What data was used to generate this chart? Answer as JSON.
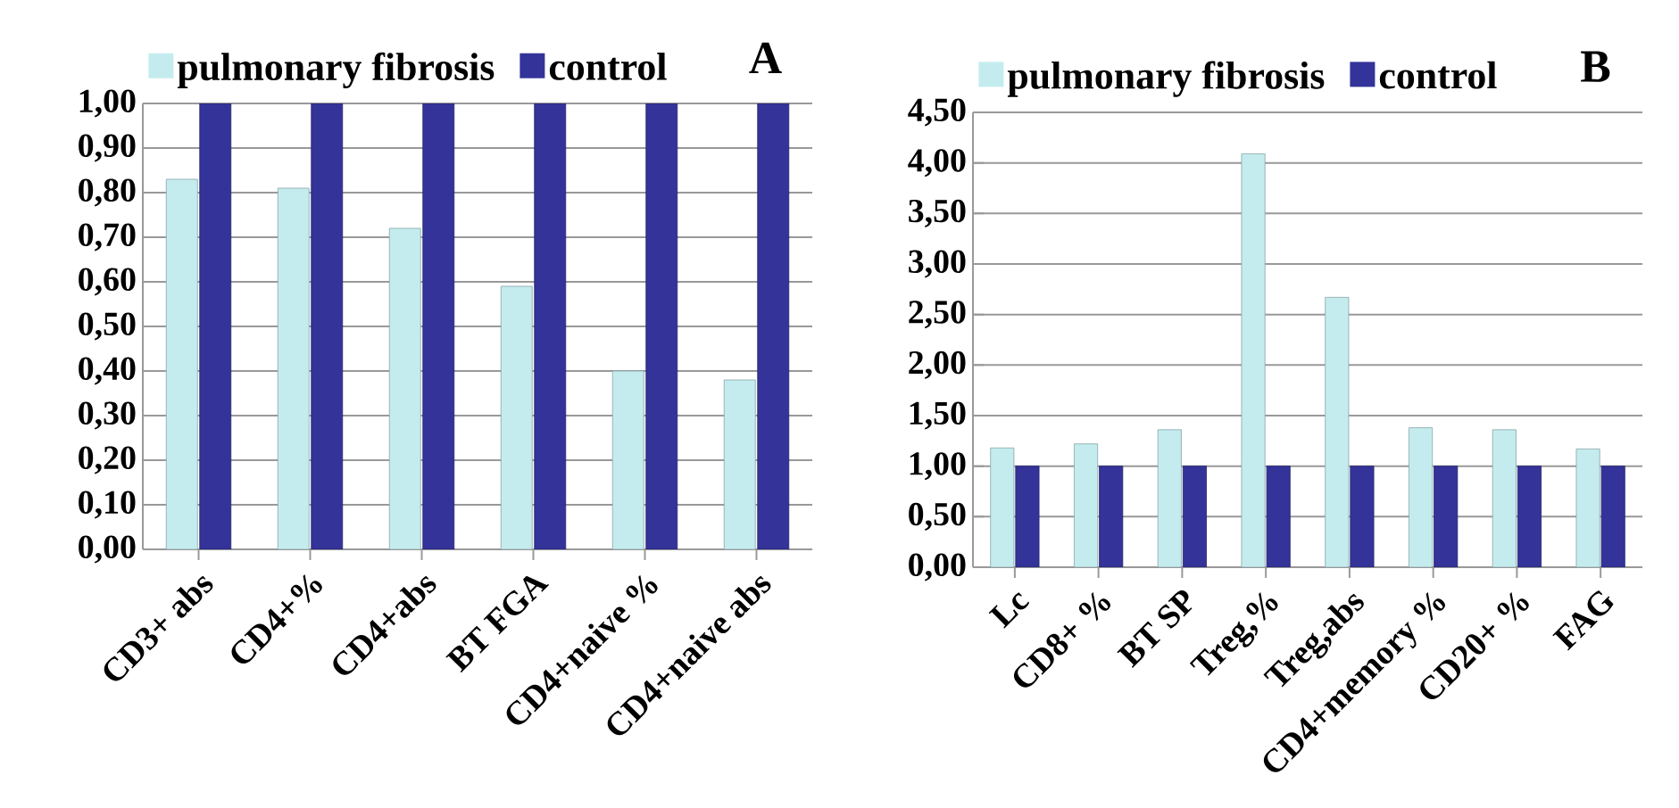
{
  "chart_data": [
    {
      "type": "bar",
      "title": "A",
      "categories": [
        "CD3+ abs",
        "CD4+%",
        "CD4+abs",
        "BT FGA",
        "CD4+naive %",
        "CD4+naive abs"
      ],
      "series": [
        {
          "name": "pulmonary fibrosis",
          "color": "#c4ecee",
          "values": [
            0.83,
            0.81,
            0.72,
            0.59,
            0.4,
            0.38
          ]
        },
        {
          "name": "control",
          "color": "#333399",
          "values": [
            1.0,
            1.0,
            1.0,
            1.0,
            1.0,
            1.0
          ]
        }
      ],
      "ylim": [
        0,
        1.0
      ],
      "yticks": [
        {
          "value": 0,
          "label": "0,00"
        },
        {
          "value": 0.1,
          "label": "0,10"
        },
        {
          "value": 0.2,
          "label": "0,20"
        },
        {
          "value": 0.3,
          "label": "0,30"
        },
        {
          "value": 0.4,
          "label": "0,40"
        },
        {
          "value": 0.5,
          "label": "0,50"
        },
        {
          "value": 0.6,
          "label": "0,60"
        },
        {
          "value": 0.7,
          "label": "0,70"
        },
        {
          "value": 0.8,
          "label": "0,80"
        },
        {
          "value": 0.9,
          "label": "0,90"
        },
        {
          "value": 1.0,
          "label": "1,00"
        }
      ],
      "grid": "y",
      "legend": "top"
    },
    {
      "type": "bar",
      "title": "B",
      "categories": [
        "Lc",
        "CD8+ %",
        "BT SP",
        "Treg,%",
        "Treg,abs",
        "CD4+memory %",
        "CD20+ %",
        "FAG"
      ],
      "series": [
        {
          "name": "pulmonary fibrosis",
          "color": "#c4ecee",
          "values": [
            1.18,
            1.22,
            1.36,
            4.09,
            2.67,
            1.38,
            1.36,
            1.17
          ]
        },
        {
          "name": "control",
          "color": "#333399",
          "values": [
            1.0,
            1.0,
            1.0,
            1.0,
            1.0,
            1.0,
            1.0,
            1.0
          ]
        }
      ],
      "ylim": [
        0,
        4.5
      ],
      "yticks": [
        {
          "value": 0,
          "label": "0,00"
        },
        {
          "value": 0.5,
          "label": "0,50"
        },
        {
          "value": 1.0,
          "label": "1,00"
        },
        {
          "value": 1.5,
          "label": "1,50"
        },
        {
          "value": 2.0,
          "label": "2,00"
        },
        {
          "value": 2.5,
          "label": "2,50"
        },
        {
          "value": 3.0,
          "label": "3,00"
        },
        {
          "value": 3.5,
          "label": "3,50"
        },
        {
          "value": 4.0,
          "label": "4,00"
        },
        {
          "value": 4.5,
          "label": "4,50"
        }
      ],
      "grid": "y",
      "legend": "top"
    }
  ]
}
